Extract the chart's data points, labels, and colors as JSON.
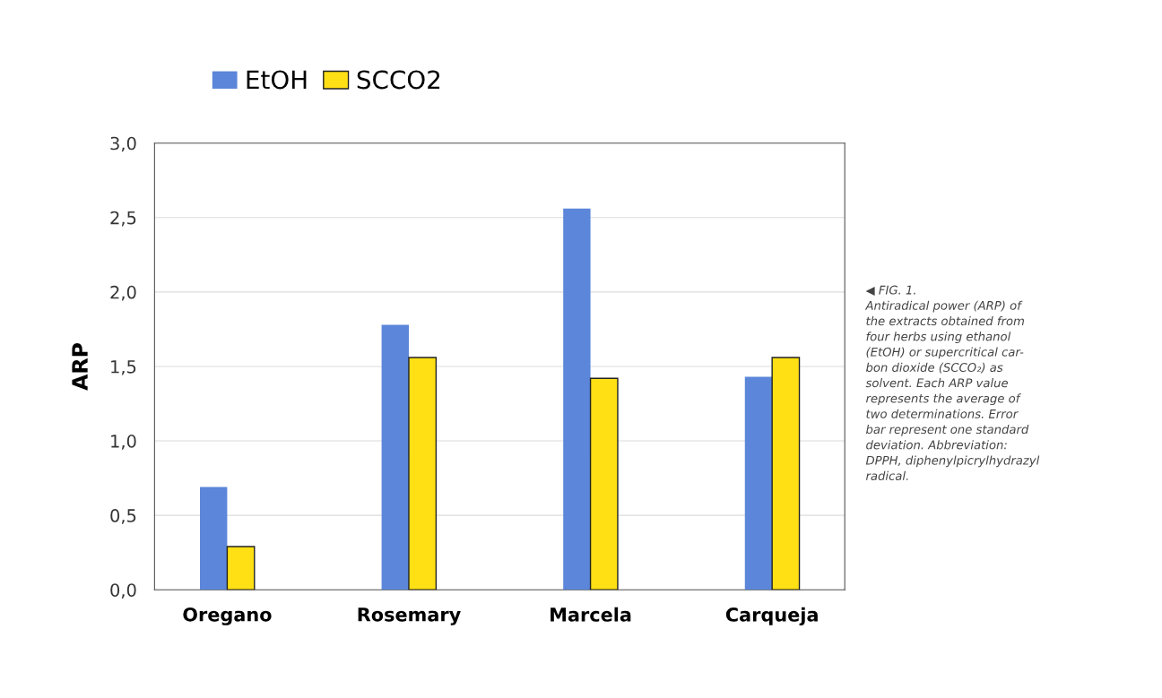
{
  "chart_data": {
    "type": "bar",
    "ylabel": "ARP",
    "categories": [
      "Oregano",
      "Rosemary",
      "Marcela",
      "Carqueja"
    ],
    "series": [
      {
        "name": "EtOH",
        "color": "#5b86d9",
        "values": [
          0.69,
          1.78,
          2.56,
          1.43
        ]
      },
      {
        "name": "SCCO2",
        "color": "#ffe014",
        "values": [
          0.29,
          1.56,
          1.42,
          1.56
        ]
      }
    ],
    "ylim": [
      0,
      3
    ],
    "yticks": [
      {
        "value": 0,
        "label": "0,0"
      },
      {
        "value": 0.5,
        "label": "0,5"
      },
      {
        "value": 1,
        "label": "1,0"
      },
      {
        "value": 1.5,
        "label": "1,5"
      },
      {
        "value": 2,
        "label": "2,0"
      },
      {
        "value": 2.5,
        "label": "2,5"
      },
      {
        "value": 3,
        "label": "3,0"
      }
    ],
    "grid": "y",
    "legend": "top",
    "annotations": [
      "◀ FIG. 1.\nAntiradical power (ARP) of\nthe extracts obtained from\nfour herbs using ethanol\n(EtOH) or supercritical car-\nbon dioxide (SCCO₂) as\nsolvent. Each ARP value\nrepresents the average of\ntwo determinations. Error\nbar represent one standard\ndeviation. Abbreviation:\nDPPH, diphenylpicrylhydrazyl\nradical."
    ]
  }
}
